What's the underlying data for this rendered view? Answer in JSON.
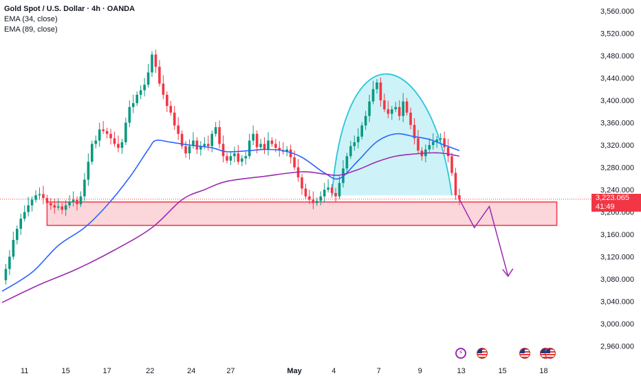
{
  "header": {
    "title": "Gold Spot / U.S. Dollar · 4h · OANDA",
    "indicators": [
      "EMA (34, close)",
      "EMA (89, close)"
    ]
  },
  "price_badge": {
    "price": "3,223.065",
    "countdown": "41:49",
    "color": "#f23645"
  },
  "colors": {
    "up": "#089981",
    "down": "#f23645",
    "ema34": "#2962ff",
    "ema89": "#9c27b0",
    "zone_fill": "#f9c8cf",
    "zone_border": "#f23645",
    "cup_fill": "#b2ebf2",
    "cup_stroke": "#26c6da",
    "projection": "#9c27b0"
  },
  "events": [
    "flash-icon",
    "us-flag-icon",
    "us-flag-icon",
    "us-flag-icon",
    "us-flag-icon"
  ],
  "chart_data": {
    "type": "candlestick",
    "title": "Gold Spot / U.S. Dollar · 4h · OANDA",
    "y_axis": {
      "range": [
        2930,
        3580
      ],
      "ticks": [
        "3,560.000",
        "3,520.000",
        "3,480.000",
        "3,440.000",
        "3,400.000",
        "3,360.000",
        "3,320.000",
        "3,280.000",
        "3,240.000",
        "3,200.000",
        "3,160.000",
        "3,120.000",
        "3,080.000",
        "3,040.000",
        "3,000.000",
        "2,960.000"
      ],
      "tick_values": [
        3560,
        3520,
        3480,
        3440,
        3400,
        3360,
        3320,
        3280,
        3240,
        3200,
        3160,
        3120,
        3080,
        3040,
        3000,
        2960
      ]
    },
    "x_axis": {
      "range": [
        0,
        150
      ],
      "ticks": [
        {
          "label": "11",
          "x": 6,
          "bold": false
        },
        {
          "label": "15",
          "x": 17,
          "bold": false
        },
        {
          "label": "17",
          "x": 28,
          "bold": false
        },
        {
          "label": "22",
          "x": 39.5,
          "bold": false
        },
        {
          "label": "24",
          "x": 50.5,
          "bold": false
        },
        {
          "label": "27",
          "x": 61,
          "bold": false
        },
        {
          "label": "May",
          "x": 78,
          "bold": true
        },
        {
          "label": "4",
          "x": 88.5,
          "bold": false
        },
        {
          "label": "7",
          "x": 100.5,
          "bold": false
        },
        {
          "label": "9",
          "x": 111.5,
          "bold": false
        },
        {
          "label": "13",
          "x": 122.5,
          "bold": false
        },
        {
          "label": "15",
          "x": 133.5,
          "bold": false
        },
        {
          "label": "18",
          "x": 144.5,
          "bold": false
        }
      ]
    },
    "current_price": 3223.065,
    "current_price_label": "3,223.065",
    "countdown": "41:49",
    "close_path": [
      [
        0,
        3078
      ],
      [
        1,
        3098
      ],
      [
        2,
        3120
      ],
      [
        3,
        3150
      ],
      [
        4,
        3170
      ],
      [
        5,
        3188
      ],
      [
        6,
        3200
      ],
      [
        7,
        3212
      ],
      [
        8,
        3222
      ],
      [
        9,
        3230
      ],
      [
        10,
        3232
      ],
      [
        11,
        3225
      ],
      [
        12,
        3216
      ],
      [
        13,
        3212
      ],
      [
        14,
        3208
      ],
      [
        15,
        3210
      ],
      [
        16,
        3204
      ],
      [
        17,
        3212
      ],
      [
        18,
        3218
      ],
      [
        19,
        3222
      ],
      [
        20,
        3214
      ],
      [
        21,
        3228
      ],
      [
        22,
        3258
      ],
      [
        23,
        3290
      ],
      [
        24,
        3322
      ],
      [
        25,
        3328
      ],
      [
        26,
        3348
      ],
      [
        27,
        3345
      ],
      [
        28,
        3340
      ],
      [
        29,
        3332
      ],
      [
        30,
        3322
      ],
      [
        31,
        3315
      ],
      [
        32,
        3325
      ],
      [
        33,
        3360
      ],
      [
        34,
        3388
      ],
      [
        35,
        3395
      ],
      [
        36,
        3410
      ],
      [
        37,
        3418
      ],
      [
        38,
        3428
      ],
      [
        39,
        3450
      ],
      [
        40,
        3482
      ],
      [
        41,
        3460
      ],
      [
        42,
        3430
      ],
      [
        43,
        3410
      ],
      [
        44,
        3390
      ],
      [
        45,
        3378
      ],
      [
        46,
        3355
      ],
      [
        47,
        3340
      ],
      [
        48,
        3318
      ],
      [
        49,
        3305
      ],
      [
        50,
        3318
      ],
      [
        51,
        3328
      ],
      [
        52,
        3312
      ],
      [
        53,
        3318
      ],
      [
        54,
        3322
      ],
      [
        55,
        3318
      ],
      [
        56,
        3340
      ],
      [
        57,
        3352
      ],
      [
        58,
        3322
      ],
      [
        59,
        3300
      ],
      [
        60,
        3292
      ],
      [
        61,
        3300
      ],
      [
        62,
        3305
      ],
      [
        63,
        3290
      ],
      [
        64,
        3296
      ],
      [
        65,
        3300
      ],
      [
        66,
        3328
      ],
      [
        67,
        3340
      ],
      [
        68,
        3316
      ],
      [
        69,
        3322
      ],
      [
        70,
        3312
      ],
      [
        71,
        3328
      ],
      [
        72,
        3322
      ],
      [
        73,
        3315
      ],
      [
        74,
        3310
      ],
      [
        75,
        3308
      ],
      [
        76,
        3312
      ],
      [
        77,
        3298
      ],
      [
        78,
        3280
      ],
      [
        79,
        3262
      ],
      [
        80,
        3242
      ],
      [
        81,
        3228
      ],
      [
        82,
        3222
      ],
      [
        83,
        3216
      ],
      [
        84,
        3220
      ],
      [
        85,
        3228
      ],
      [
        86,
        3240
      ],
      [
        87,
        3244
      ],
      [
        88,
        3234
      ],
      [
        89,
        3228
      ],
      [
        90,
        3252
      ],
      [
        91,
        3278
      ],
      [
        92,
        3300
      ],
      [
        93,
        3318
      ],
      [
        94,
        3325
      ],
      [
        95,
        3335
      ],
      [
        96,
        3355
      ],
      [
        97,
        3372
      ],
      [
        98,
        3398
      ],
      [
        99,
        3420
      ],
      [
        100,
        3432
      ],
      [
        101,
        3400
      ],
      [
        102,
        3384
      ],
      [
        103,
        3376
      ],
      [
        104,
        3384
      ],
      [
        105,
        3388
      ],
      [
        106,
        3372
      ],
      [
        107,
        3398
      ],
      [
        108,
        3378
      ],
      [
        109,
        3356
      ],
      [
        110,
        3332
      ],
      [
        111,
        3310
      ],
      [
        112,
        3300
      ],
      [
        113,
        3312
      ],
      [
        114,
        3320
      ],
      [
        115,
        3326
      ],
      [
        116,
        3330
      ],
      [
        117,
        3332
      ],
      [
        118,
        3316
      ],
      [
        119,
        3300
      ],
      [
        120,
        3270
      ],
      [
        121,
        3230
      ],
      [
        122,
        3223.065
      ]
    ],
    "series": [
      {
        "name": "EMA (34, close)",
        "x": [
          0,
          8,
          15,
          22,
          28,
          34,
          39,
          41,
          45,
          50,
          56,
          60,
          66,
          70,
          75,
          80,
          86,
          90,
          95,
          100,
          105,
          110,
          114,
          118,
          122
        ],
        "values": [
          3058,
          3092,
          3140,
          3172,
          3212,
          3262,
          3312,
          3328,
          3325,
          3320,
          3315,
          3308,
          3310,
          3312,
          3310,
          3298,
          3270,
          3260,
          3292,
          3326,
          3340,
          3335,
          3330,
          3320,
          3310
        ]
      },
      {
        "name": "EMA (89, close)",
        "x": [
          0,
          10,
          20,
          30,
          40,
          48,
          54,
          60,
          70,
          80,
          86,
          90,
          95,
          100,
          105,
          110,
          115,
          118,
          122
        ],
        "values": [
          3038,
          3070,
          3098,
          3132,
          3172,
          3222,
          3240,
          3255,
          3264,
          3272,
          3268,
          3266,
          3276,
          3290,
          3300,
          3304,
          3306,
          3305,
          3300
        ]
      }
    ],
    "support_zone": {
      "x_range": [
        12,
        148
      ],
      "y_range": [
        3176,
        3218
      ]
    },
    "cup_pattern": {
      "x_range": [
        88,
        120
      ],
      "base": 3230,
      "top": 3433
    },
    "projection_path": [
      [
        122,
        3223
      ],
      [
        126,
        3172
      ],
      [
        130,
        3210
      ],
      [
        135,
        3085
      ],
      [
        137,
        3095
      ]
    ]
  }
}
